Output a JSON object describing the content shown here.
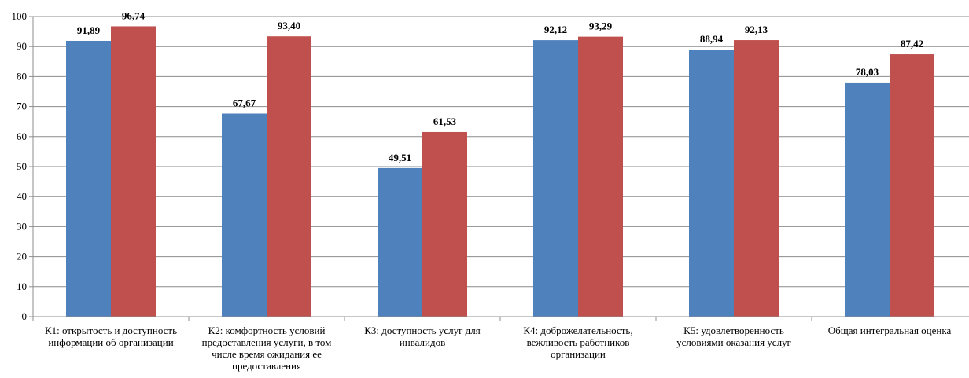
{
  "chart_data": {
    "type": "bar",
    "categories": [
      [
        "К1: открытость и доступность",
        "информации об организации"
      ],
      [
        "К2: комфортность условий",
        "предоставления услуги, в том",
        "числе время ожидания ее",
        "предоставления"
      ],
      [
        "К3: доступность услуг для",
        "инвалидов"
      ],
      [
        "К4: доброжелательность,",
        "вежливость работников",
        "организации"
      ],
      [
        "К5: удовлетворенность",
        "условиями оказания услуг"
      ],
      [
        "Общая интегральная оценка"
      ]
    ],
    "series": [
      {
        "values": [
          91.89,
          67.67,
          49.51,
          92.12,
          88.94,
          78.03
        ],
        "labels": [
          "91,89",
          "67,67",
          "49,51",
          "92,12",
          "88,94",
          "78,03"
        ],
        "color": "#4F81BD"
      },
      {
        "values": [
          96.74,
          93.4,
          61.53,
          93.29,
          92.13,
          87.42
        ],
        "labels": [
          "96,74",
          "93,40",
          "61,53",
          "93,29",
          "92,13",
          "87,42"
        ],
        "color": "#C0504D"
      }
    ],
    "yticks": [
      "0",
      "10",
      "20",
      "30",
      "40",
      "50",
      "60",
      "70",
      "80",
      "90",
      "100"
    ],
    "ylim": [
      0,
      100
    ],
    "grid": true,
    "legend": "none"
  }
}
